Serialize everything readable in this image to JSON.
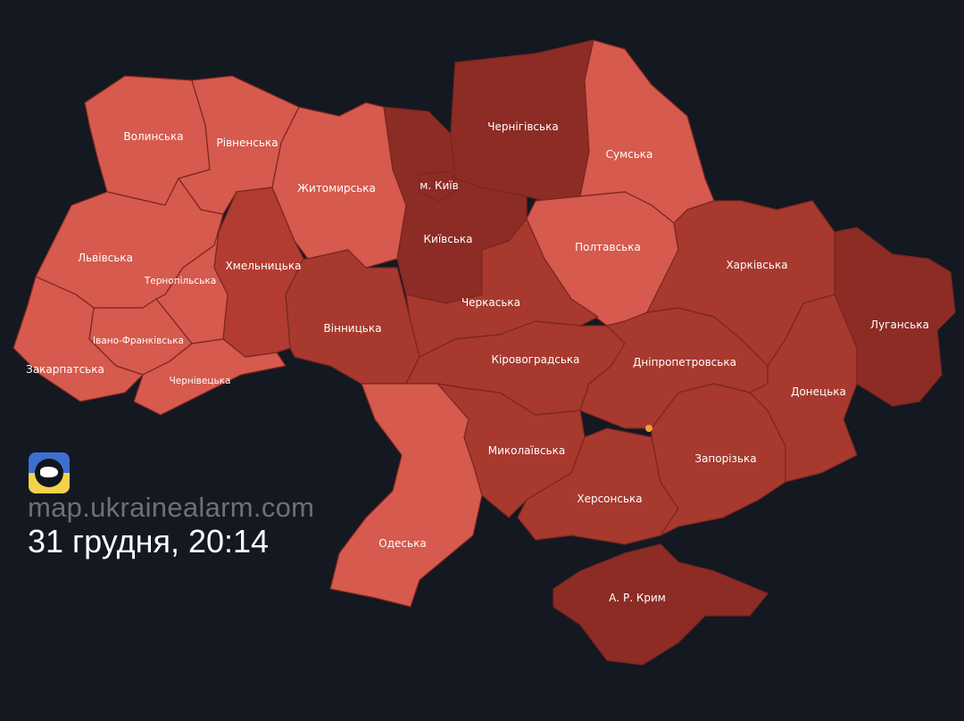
{
  "colors": {
    "background": "#141820",
    "level_light": "#d65a4d",
    "level_medium": "#a7392f",
    "level_dark": "#8c2c25",
    "level_bright": "#b23c31",
    "hotspot": "#f0a030"
  },
  "branding": {
    "logo_icon": "ukraine-map-icon",
    "site": "map.ukrainealarm.com",
    "timestamp": "31 грудня, 20:14"
  },
  "regions": [
    {
      "name": "Волинська",
      "level": "light"
    },
    {
      "name": "Рівненська",
      "level": "light"
    },
    {
      "name": "Житомирська",
      "level": "light"
    },
    {
      "name": "Львівська",
      "level": "light"
    },
    {
      "name": "Тернопільська",
      "level": "light"
    },
    {
      "name": "Івано-Франківська",
      "level": "light"
    },
    {
      "name": "Закарпатська",
      "level": "light"
    },
    {
      "name": "Чернівецька",
      "level": "light"
    },
    {
      "name": "Хмельницька",
      "level": "bright"
    },
    {
      "name": "Вінницька",
      "level": "medium"
    },
    {
      "name": "Київська",
      "level": "dark"
    },
    {
      "name": "Чернігівська",
      "level": "dark"
    },
    {
      "name": "Сумська",
      "level": "light"
    },
    {
      "name": "Полтавська",
      "level": "light"
    },
    {
      "name": "Черкаська",
      "level": "medium"
    },
    {
      "name": "Кіровоградська",
      "level": "medium"
    },
    {
      "name": "Одеська",
      "level": "light"
    },
    {
      "name": "Миколаївська",
      "level": "medium"
    },
    {
      "name": "Херсонська",
      "level": "medium"
    },
    {
      "name": "А. Р. Крим",
      "level": "dark"
    },
    {
      "name": "Дніпропетровська",
      "level": "medium"
    },
    {
      "name": "Запорізька",
      "level": "medium"
    },
    {
      "name": "Донецька",
      "level": "medium"
    },
    {
      "name": "Харківська",
      "level": "medium"
    },
    {
      "name": "Луганська",
      "level": "dark"
    },
    {
      "name": "м. Київ",
      "level": "dark"
    }
  ]
}
